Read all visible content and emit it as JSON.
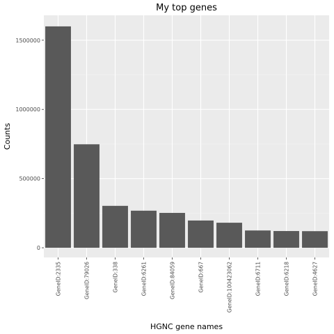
{
  "chart_data": {
    "type": "bar",
    "title": "My top genes",
    "xlabel": "HGNC gene names",
    "ylabel": "Counts",
    "categories": [
      "GeneID:2335",
      "GeneID:79026",
      "GeneID:338",
      "GeneID:6261",
      "GeneID:84059",
      "GeneID:667",
      "GeneID:100423062",
      "GeneID:6711",
      "GeneID:6218",
      "GeneID:4627"
    ],
    "values": [
      1600000,
      748000,
      303000,
      268000,
      252000,
      197000,
      181000,
      125000,
      121000,
      120000
    ],
    "ylim": [
      -70000,
      1680000
    ],
    "yticks": [
      0,
      500000,
      1000000,
      1500000
    ],
    "ytick_labels": [
      "0",
      "500000",
      "1000000",
      "1500000"
    ],
    "grid": true,
    "legend": "none",
    "colors": {
      "bar": "#595959",
      "panel": "#ebebeb",
      "grid_major": "#ffffff",
      "grid_minor": "#f5f5f5"
    }
  }
}
